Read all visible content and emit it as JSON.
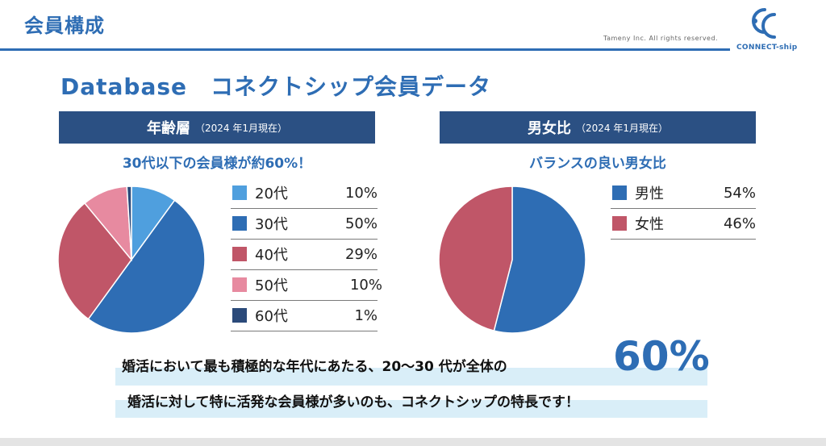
{
  "header": {
    "title": "会員構成",
    "copyright": "Tameny Inc. All rights reserved.",
    "logo_text": "CONNECT-ship",
    "accent_color": "#2e6db4"
  },
  "main": {
    "title": "Database　コネクトシップ会員データ"
  },
  "age_panel": {
    "header_main": "年齢層",
    "header_sub": "（2024 年1月現在）",
    "subtitle": "30代以下の会員様が約60%！",
    "legend": [
      {
        "label": "20代",
        "value": "10%",
        "color": "#4f9fde"
      },
      {
        "label": "30代",
        "value": "50%",
        "color": "#2e6db4"
      },
      {
        "label": "40代",
        "value": "29%",
        "color": "#c05668"
      },
      {
        "label": "50代",
        "value": "10%",
        "color": "#e78aa0"
      },
      {
        "label": "60代",
        "value": "1%",
        "color": "#2b4a7a"
      }
    ]
  },
  "gender_panel": {
    "header_main": "男女比",
    "header_sub": "（2024 年1月現在）",
    "subtitle": "バランスの良い男女比",
    "legend": [
      {
        "label": "男性",
        "value": "54%",
        "color": "#2e6db4"
      },
      {
        "label": "女性",
        "value": "46%",
        "color": "#c05668"
      }
    ]
  },
  "message": {
    "line1": "婚活において最も積極的な年代にあたる、20〜30 代が全体の",
    "highlight": "60%",
    "line2": "婚活に対して特に活発な会員様が多いのも、コネクトシップの特長です！"
  },
  "chart_data": [
    {
      "type": "pie",
      "title": "年齢層",
      "categories": [
        "20代",
        "30代",
        "40代",
        "50代",
        "60代"
      ],
      "values": [
        10,
        50,
        29,
        10,
        1
      ],
      "colors": [
        "#4f9fde",
        "#2e6db4",
        "#c05668",
        "#e78aa0",
        "#2b4a7a"
      ]
    },
    {
      "type": "pie",
      "title": "男女比",
      "categories": [
        "男性",
        "女性"
      ],
      "values": [
        54,
        46
      ],
      "colors": [
        "#2e6db4",
        "#c05668"
      ]
    }
  ]
}
